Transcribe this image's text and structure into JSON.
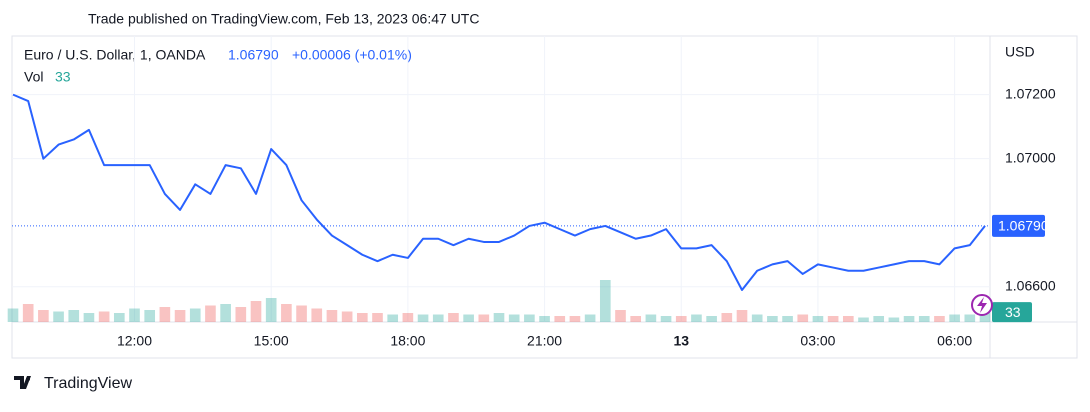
{
  "header": "Trade published on TradingView.com, Feb 13, 2023 06:47 UTC",
  "footer": "TradingView",
  "chart_data": {
    "type": "line",
    "categories": [
      null,
      null,
      null,
      null,
      null,
      null,
      null,
      null,
      "12:00",
      null,
      null,
      null,
      null,
      null,
      null,
      null,
      null,
      "15:00",
      null,
      null,
      null,
      null,
      null,
      null,
      null,
      null,
      "18:00",
      null,
      null,
      null,
      null,
      null,
      null,
      null,
      null,
      "21:00",
      null,
      null,
      null,
      null,
      null,
      null,
      null,
      null,
      "13",
      null,
      null,
      null,
      null,
      null,
      null,
      null,
      null,
      "03:00",
      null,
      null,
      null,
      null,
      null,
      null,
      null,
      null,
      "06:00",
      null,
      null
    ],
    "series": [
      {
        "name": "Euro / U.S. Dollar, 1, OANDA",
        "color": "#2962ff",
        "values": [
          1.072,
          1.0718,
          1.07,
          1.07044,
          1.0706,
          1.0709,
          1.0698,
          1.0698,
          1.0698,
          1.0698,
          1.0689,
          1.0684,
          1.0692,
          1.0689,
          1.0698,
          1.0697,
          1.0689,
          1.0703,
          1.0698,
          1.0687,
          1.0681,
          1.0676,
          1.0673,
          1.067,
          1.0668,
          1.067,
          1.0669,
          1.0675,
          1.0675,
          1.0673,
          1.0675,
          1.0674,
          1.0674,
          1.0676,
          1.0679,
          1.068,
          1.0678,
          1.0676,
          1.0678,
          1.0679,
          1.0677,
          1.0675,
          1.0676,
          1.0678,
          1.0672,
          1.0672,
          1.0673,
          1.0668,
          1.0659,
          1.0665,
          1.0667,
          1.0668,
          1.0664,
          1.0667,
          1.0666,
          1.0665,
          1.0665,
          1.0666,
          1.0667,
          1.0668,
          1.0668,
          1.0667,
          1.0672,
          1.0673,
          1.0679
        ]
      },
      {
        "name": "Vol",
        "axis": "y2",
        "up_color": "#26a69a",
        "down_color": "#ef5350",
        "values": [
          45,
          60,
          40,
          35,
          40,
          30,
          35,
          30,
          45,
          40,
          50,
          40,
          45,
          55,
          60,
          50,
          70,
          80,
          60,
          55,
          45,
          40,
          35,
          30,
          30,
          25,
          30,
          25,
          25,
          30,
          25,
          25,
          30,
          25,
          25,
          20,
          20,
          20,
          25,
          140,
          40,
          20,
          25,
          20,
          20,
          25,
          20,
          30,
          40,
          25,
          20,
          20,
          25,
          20,
          20,
          20,
          15,
          20,
          15,
          20,
          20,
          20,
          25,
          25,
          33
        ]
      }
    ],
    "last_price_label": "1.06790",
    "change_label": "+0.00006 (+0.01%)",
    "y_unit": "USD",
    "ylim": [
      1.0649,
      1.0738
    ],
    "yticks": [
      {
        "value": 1.066,
        "label": "1.06600"
      },
      {
        "value": 1.07,
        "label": "1.07000"
      },
      {
        "value": 1.072,
        "label": "1.07200"
      }
    ],
    "y2lim": [
      0,
      950
    ],
    "grid": true
  }
}
